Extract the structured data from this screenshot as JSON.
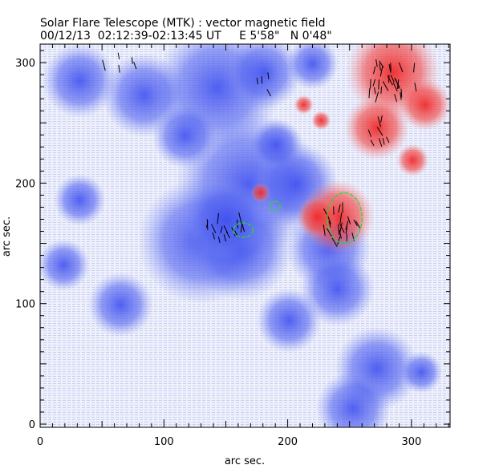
{
  "chart_data": {
    "type": "heatmap",
    "title": "Solar Flare Telescope (MTK) : vector magnetic field",
    "subtitle": "00/12/13  02:12:39-02:13:45 UT     E 5'58\"   N 0'48\"",
    "xlabel": "arc sec.",
    "ylabel": "arc sec.",
    "xlim": [
      0,
      331
    ],
    "ylim": [
      0,
      315
    ],
    "xticks": [
      "0",
      "100",
      "200",
      "300"
    ],
    "yticks": [
      "0",
      "100",
      "200",
      "300"
    ],
    "colors": {
      "negative": "#4a5cf0",
      "positive": "#f03c3c",
      "contour": "#22dd22",
      "vector": "#000000"
    },
    "blobs": [
      {
        "x": 143,
        "y": 279,
        "r": 39,
        "p": -1
      },
      {
        "x": 181,
        "y": 292,
        "r": 23,
        "p": -1
      },
      {
        "x": 220,
        "y": 299,
        "r": 16,
        "p": -1
      },
      {
        "x": 84,
        "y": 273,
        "r": 26,
        "p": -1
      },
      {
        "x": 32,
        "y": 285,
        "r": 23,
        "p": -1
      },
      {
        "x": 168,
        "y": 199,
        "r": 45,
        "p": -1
      },
      {
        "x": 130,
        "y": 152,
        "r": 39,
        "p": -1
      },
      {
        "x": 162,
        "y": 146,
        "r": 32,
        "p": -1
      },
      {
        "x": 207,
        "y": 199,
        "r": 26,
        "p": -1
      },
      {
        "x": 233,
        "y": 146,
        "r": 26,
        "p": -1
      },
      {
        "x": 240,
        "y": 112,
        "r": 23,
        "p": -1
      },
      {
        "x": 201,
        "y": 86,
        "r": 20,
        "p": -1
      },
      {
        "x": 272,
        "y": 46,
        "r": 26,
        "p": -1
      },
      {
        "x": 253,
        "y": 13,
        "r": 23,
        "p": -1
      },
      {
        "x": 308,
        "y": 43,
        "r": 13,
        "p": -1
      },
      {
        "x": 65,
        "y": 99,
        "r": 20,
        "p": -1
      },
      {
        "x": 32,
        "y": 186,
        "r": 16,
        "p": -1
      },
      {
        "x": 19,
        "y": 132,
        "r": 16,
        "p": -1
      },
      {
        "x": 117,
        "y": 239,
        "r": 20,
        "p": -1
      },
      {
        "x": 191,
        "y": 232,
        "r": 16,
        "p": -1
      },
      {
        "x": 150,
        "y": 170,
        "r": 25,
        "p": -1
      },
      {
        "x": 285,
        "y": 292,
        "r": 29,
        "p": 1
      },
      {
        "x": 272,
        "y": 246,
        "r": 20,
        "p": 1
      },
      {
        "x": 240,
        "y": 172,
        "r": 23,
        "p": 1
      },
      {
        "x": 224,
        "y": 172,
        "r": 13,
        "p": 1
      },
      {
        "x": 311,
        "y": 265,
        "r": 16,
        "p": 1
      },
      {
        "x": 301,
        "y": 219,
        "r": 10,
        "p": 1
      },
      {
        "x": 178,
        "y": 192,
        "r": 6,
        "p": 1
      },
      {
        "x": 213,
        "y": 265,
        "r": 6,
        "p": 1
      },
      {
        "x": 227,
        "y": 252,
        "r": 6,
        "p": 1
      }
    ],
    "contours": [
      {
        "x": 164,
        "y": 161,
        "rx": 8,
        "ry": 6
      },
      {
        "x": 190,
        "y": 181,
        "rx": 4,
        "ry": 4
      },
      {
        "x": 246,
        "y": 171,
        "rx": 14,
        "ry": 21
      }
    ],
    "vector_regions": [
      {
        "x": 285,
        "y": 285,
        "w": 40,
        "h": 30,
        "n": 28
      },
      {
        "x": 275,
        "y": 245,
        "w": 20,
        "h": 25,
        "n": 8
      },
      {
        "x": 243,
        "y": 165,
        "w": 30,
        "h": 30,
        "n": 22
      },
      {
        "x": 148,
        "y": 160,
        "w": 35,
        "h": 25,
        "n": 16
      },
      {
        "x": 65,
        "y": 300,
        "w": 30,
        "h": 15,
        "n": 5
      },
      {
        "x": 183,
        "y": 285,
        "w": 15,
        "h": 25,
        "n": 4
      }
    ]
  }
}
